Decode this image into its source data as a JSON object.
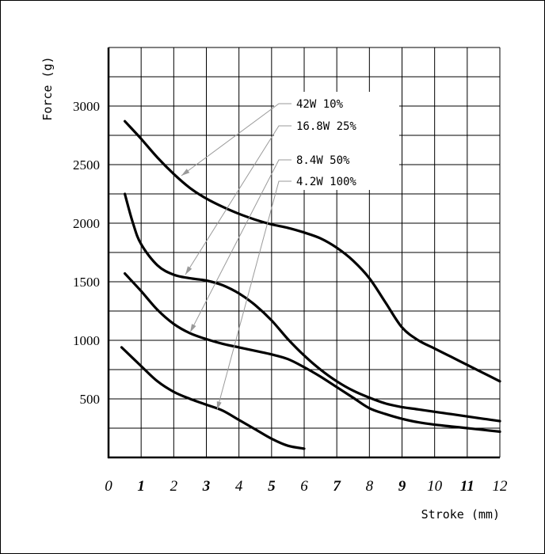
{
  "chart_data": {
    "type": "line",
    "xlabel": "Stroke (mm)",
    "ylabel": "Force (g)",
    "xlim": [
      0,
      12
    ],
    "ylim": [
      0,
      3500
    ],
    "x_ticks": [
      "0",
      "1",
      "2",
      "3",
      "4",
      "5",
      "6",
      "7",
      "8",
      "9",
      "10",
      "11",
      "12"
    ],
    "x_ticks_bold": [
      false,
      true,
      false,
      true,
      false,
      true,
      false,
      true,
      false,
      true,
      false,
      true,
      false
    ],
    "y_ticks": [
      {
        "value": 500,
        "label": "500"
      },
      {
        "value": 1000,
        "label": "1000"
      },
      {
        "value": 1500,
        "label": "1500"
      },
      {
        "value": 2000,
        "label": "2000"
      },
      {
        "value": 2500,
        "label": "2500"
      },
      {
        "value": 3000,
        "label": "3000"
      }
    ],
    "grid": true,
    "legend_position": "top-center",
    "series": [
      {
        "name": "42W  10%",
        "points": [
          [
            0.5,
            2870
          ],
          [
            1,
            2720
          ],
          [
            1.5,
            2560
          ],
          [
            2,
            2420
          ],
          [
            2.5,
            2300
          ],
          [
            3,
            2210
          ],
          [
            3.5,
            2140
          ],
          [
            4,
            2080
          ],
          [
            4.5,
            2030
          ],
          [
            5,
            1990
          ],
          [
            5.5,
            1960
          ],
          [
            6,
            1920
          ],
          [
            6.5,
            1870
          ],
          [
            7,
            1790
          ],
          [
            7.5,
            1680
          ],
          [
            8,
            1530
          ],
          [
            8.5,
            1320
          ],
          [
            9,
            1110
          ],
          [
            9.5,
            1000
          ],
          [
            10,
            930
          ],
          [
            10.5,
            860
          ],
          [
            11,
            790
          ],
          [
            11.5,
            720
          ],
          [
            12,
            650
          ]
        ]
      },
      {
        "name": "16.8W  25%",
        "points": [
          [
            0.5,
            2250
          ],
          [
            0.75,
            2000
          ],
          [
            1,
            1820
          ],
          [
            1.5,
            1640
          ],
          [
            2,
            1560
          ],
          [
            2.5,
            1530
          ],
          [
            3,
            1510
          ],
          [
            3.5,
            1470
          ],
          [
            4,
            1400
          ],
          [
            4.5,
            1300
          ],
          [
            5,
            1170
          ],
          [
            5.5,
            1010
          ],
          [
            6,
            870
          ],
          [
            6.5,
            750
          ],
          [
            7,
            650
          ],
          [
            7.5,
            570
          ],
          [
            8,
            510
          ],
          [
            8.5,
            460
          ],
          [
            9,
            430
          ],
          [
            9.5,
            410
          ],
          [
            10,
            390
          ],
          [
            10.5,
            370
          ],
          [
            11,
            350
          ],
          [
            11.5,
            330
          ],
          [
            12,
            310
          ]
        ]
      },
      {
        "name": "8.4W  50%",
        "points": [
          [
            0.5,
            1570
          ],
          [
            1,
            1420
          ],
          [
            1.5,
            1260
          ],
          [
            2,
            1140
          ],
          [
            2.5,
            1060
          ],
          [
            3,
            1010
          ],
          [
            3.5,
            970
          ],
          [
            4,
            940
          ],
          [
            4.5,
            910
          ],
          [
            5,
            880
          ],
          [
            5.5,
            840
          ],
          [
            6,
            770
          ],
          [
            6.5,
            690
          ],
          [
            7,
            600
          ],
          [
            7.5,
            510
          ],
          [
            8,
            420
          ],
          [
            8.5,
            370
          ],
          [
            9,
            330
          ],
          [
            9.5,
            300
          ],
          [
            10,
            280
          ],
          [
            10.5,
            265
          ],
          [
            11,
            250
          ],
          [
            11.5,
            235
          ],
          [
            12,
            220
          ]
        ]
      },
      {
        "name": "4.2W  100%",
        "points": [
          [
            0.4,
            940
          ],
          [
            1,
            780
          ],
          [
            1.5,
            650
          ],
          [
            2,
            560
          ],
          [
            2.5,
            500
          ],
          [
            3,
            450
          ],
          [
            3.5,
            400
          ],
          [
            4,
            320
          ],
          [
            4.5,
            240
          ],
          [
            5,
            160
          ],
          [
            5.5,
            100
          ],
          [
            6,
            75
          ]
        ]
      }
    ]
  }
}
